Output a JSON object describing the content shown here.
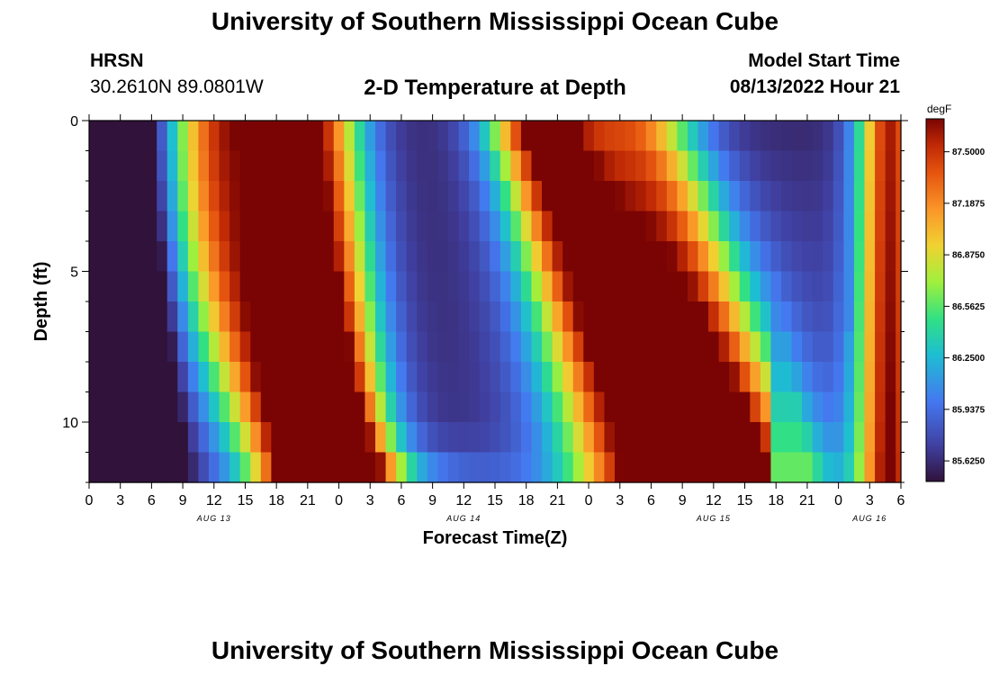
{
  "header": {
    "title": "University of Southern Mississippi Ocean Cube",
    "station": "HRSN",
    "coordinates": "30.2610N  89.0801W",
    "subtitle": "2-D Temperature at Depth",
    "model_start_label": "Model Start Time",
    "model_start_value": "08/13/2022 Hour 21"
  },
  "footer": {
    "title": "University of Southern Mississippi Ocean Cube"
  },
  "chart_data": {
    "type": "heatmap",
    "title": "2-D Temperature at Depth",
    "xlabel": "Forecast Time(Z)",
    "ylabel": "Depth (ft)",
    "x_tick_labels": [
      "0",
      "3",
      "6",
      "9",
      "12",
      "15",
      "18",
      "21",
      "0",
      "3",
      "6",
      "9",
      "12",
      "15",
      "18",
      "21",
      "0",
      "3",
      "6",
      "9",
      "12",
      "15",
      "18",
      "21",
      "0",
      "3",
      "6"
    ],
    "date_labels": [
      {
        "label": "AUG 13",
        "tick_index": 4
      },
      {
        "label": "AUG 14",
        "tick_index": 12
      },
      {
        "label": "AUG 15",
        "tick_index": 20
      },
      {
        "label": "AUG 16",
        "tick_index": 25
      }
    ],
    "x_range_hours": [
      0,
      78
    ],
    "y_tick_labels": [
      "0",
      "5",
      "10"
    ],
    "y_range_ft": [
      0,
      12
    ],
    "colorbar": {
      "unit": "degF",
      "range": [
        85.5,
        87.7
      ],
      "tick_labels": [
        "87.5000",
        "87.1875",
        "86.8750",
        "86.5625",
        "86.2500",
        "85.9375",
        "85.6250"
      ],
      "tick_values": [
        87.5,
        87.1875,
        86.875,
        86.5625,
        86.25,
        85.9375,
        85.625
      ]
    },
    "grid": false,
    "n_depth_levels": 12,
    "n_time_steps": 79
  }
}
